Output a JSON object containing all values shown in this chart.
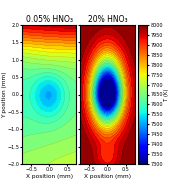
{
  "title1": "0.05% HNO₃",
  "title2": "20% HNO₃",
  "colorbar_label": "T (K)",
  "xlabel": "X position (mm)",
  "ylabel": "Y position (mm)",
  "x_range": [
    -0.75,
    0.75
  ],
  "y_range": [
    -2.0,
    2.0
  ],
  "T_min": 7300,
  "T_max": 8000,
  "colorbar_ticks": [
    7300,
    7350,
    7400,
    7450,
    7500,
    7550,
    7600,
    7650,
    7700,
    7750,
    7800,
    7850,
    7900,
    7950,
    8000
  ],
  "title_fontsize": 5.5,
  "label_fontsize": 4.2,
  "tick_fontsize": 3.5,
  "colorbar_fontsize": 3.8
}
